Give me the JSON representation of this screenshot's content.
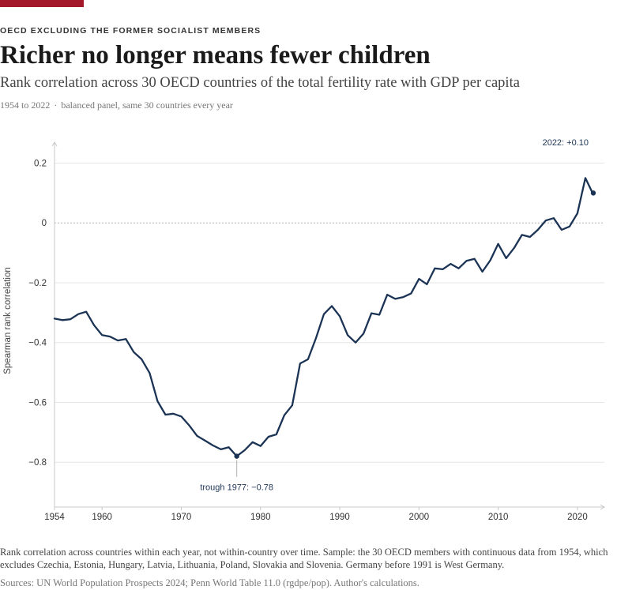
{
  "header": {
    "kicker": "OECD EXCLUDING THE FORMER SOCIALIST MEMBERS",
    "title": "Richer no longer means fewer children",
    "subtitle": "Rank correlation across 30 OECD countries of the total fertility rate with GDP per capita",
    "meta_period": "1954 to 2022",
    "meta_separator": "·",
    "meta_panel": "balanced panel, same 30 countries every year"
  },
  "footer": {
    "note": "Rank correlation across countries within each year, not within-country over time. Sample: the 30 OECD members with continuous data from 1954, which excludes Czechia, Estonia, Hungary, Latvia, Lithuania, Poland, Slovakia and Slovenia. Germany before 1991 is West Germany.",
    "sources": "Sources: UN World Population Prospects 2024; Penn World Table 11.0 (rgdpe/pop). Author's calculations."
  },
  "colors": {
    "accent": "#a3182b",
    "line": "#1b3354",
    "grid": "#e6e6e6",
    "zero_line": "#b5b5b5",
    "axis_text": "#333333"
  },
  "chart_data": {
    "type": "line",
    "ylabel": "Spearman rank correlation",
    "xlabel": "",
    "xlim": [
      1954,
      2022
    ],
    "ylim": [
      -0.95,
      0.27
    ],
    "x_ticks": [
      1954,
      1960,
      1970,
      1980,
      1990,
      2000,
      2010,
      2020
    ],
    "y_ticks": [
      0.2,
      0,
      -0.2,
      -0.4,
      -0.6,
      -0.8
    ],
    "y_tick_labels": [
      "0.2",
      "0",
      "−0.2",
      "−0.4",
      "−0.6",
      "−0.8"
    ],
    "grid": "horizontal",
    "zero_line": "dotted",
    "series": [
      {
        "x": [
          1954,
          1955,
          1956,
          1957,
          1958,
          1959,
          1960,
          1961,
          1962,
          1963,
          1964,
          1965,
          1966,
          1967,
          1968,
          1969,
          1970,
          1971,
          1972,
          1973,
          1974,
          1975,
          1976,
          1977,
          1978,
          1979,
          1980,
          1981,
          1982,
          1983,
          1984,
          1985,
          1986,
          1987,
          1988,
          1989,
          1990,
          1991,
          1992,
          1993,
          1994,
          1995,
          1996,
          1997,
          1998,
          1999,
          2000,
          2001,
          2002,
          2003,
          2004,
          2005,
          2006,
          2007,
          2008,
          2009,
          2010,
          2011,
          2012,
          2013,
          2014,
          2015,
          2016,
          2017,
          2018,
          2019,
          2020,
          2021,
          2022
        ],
        "values": [
          -0.32,
          -0.325,
          -0.322,
          -0.305,
          -0.297,
          -0.342,
          -0.375,
          -0.38,
          -0.393,
          -0.388,
          -0.432,
          -0.456,
          -0.502,
          -0.596,
          -0.641,
          -0.638,
          -0.647,
          -0.677,
          -0.712,
          -0.728,
          -0.744,
          -0.757,
          -0.75,
          -0.78,
          -0.76,
          -0.733,
          -0.746,
          -0.715,
          -0.707,
          -0.643,
          -0.61,
          -0.47,
          -0.456,
          -0.385,
          -0.305,
          -0.278,
          -0.312,
          -0.375,
          -0.4,
          -0.37,
          -0.302,
          -0.307,
          -0.24,
          -0.254,
          -0.248,
          -0.236,
          -0.187,
          -0.205,
          -0.152,
          -0.155,
          -0.137,
          -0.152,
          -0.127,
          -0.12,
          -0.163,
          -0.125,
          -0.07,
          -0.118,
          -0.084,
          -0.04,
          -0.047,
          -0.023,
          0.008,
          0.016,
          -0.023,
          -0.012,
          0.032,
          0.15,
          0.095
        ]
      }
    ],
    "annotations": [
      {
        "year": 1977,
        "value": -0.78,
        "label": "trough 1977: −0.78"
      },
      {
        "year": 2022,
        "value": 0.1,
        "label": "2022: +0.10"
      }
    ]
  }
}
